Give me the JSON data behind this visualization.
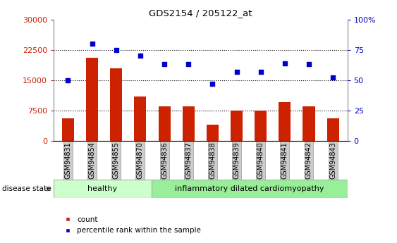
{
  "title": "GDS2154 / 205122_at",
  "samples": [
    "GSM94831",
    "GSM94854",
    "GSM94855",
    "GSM94870",
    "GSM94836",
    "GSM94837",
    "GSM94838",
    "GSM94839",
    "GSM94840",
    "GSM94841",
    "GSM94842",
    "GSM94843"
  ],
  "counts": [
    5500,
    20500,
    18000,
    11000,
    8500,
    8500,
    4000,
    7500,
    7500,
    9500,
    8500,
    5500
  ],
  "percentiles": [
    50,
    80,
    75,
    70,
    63,
    63,
    47,
    57,
    57,
    64,
    63,
    52
  ],
  "bar_color": "#cc2200",
  "dot_color": "#0000cc",
  "healthy_count": 4,
  "disease_label_healthy": "healthy",
  "disease_label_disease": "inflammatory dilated cardiomyopathy",
  "ylim_left": [
    0,
    30000
  ],
  "ylim_right": [
    0,
    100
  ],
  "yticks_left": [
    0,
    7500,
    15000,
    22500,
    30000
  ],
  "yticks_right": [
    0,
    25,
    50,
    75,
    100
  ],
  "legend_count": "count",
  "legend_pct": "percentile rank within the sample",
  "disease_state_label": "disease state",
  "healthy_bg": "#ccffcc",
  "disease_bg": "#99ee99",
  "tick_label_bg": "#cccccc"
}
